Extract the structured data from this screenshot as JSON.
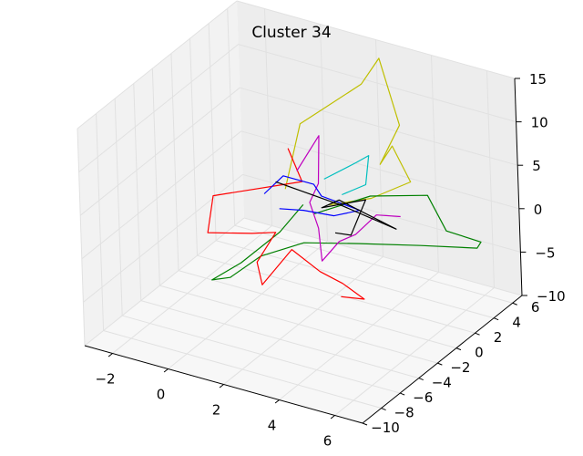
{
  "chart_data": {
    "type": "line",
    "projection": "3d",
    "title": "Cluster 34",
    "xlabel": "",
    "ylabel": "",
    "zlabel": "",
    "grid": true,
    "legend": "none",
    "xlim": [
      -3,
      7
    ],
    "ylim": [
      -10,
      7
    ],
    "zlim": [
      -10,
      15
    ],
    "x_ticks": [
      -2,
      0,
      2,
      4,
      6
    ],
    "x_tick_labels": [
      "−2",
      "0",
      "2",
      "4",
      "6"
    ],
    "y_ticks": [
      -10,
      -8,
      -6,
      -4,
      -2,
      0,
      2,
      4,
      6
    ],
    "y_tick_labels": [
      "−10",
      "−8",
      "−6",
      "−4",
      "−2",
      "0",
      "2",
      "4",
      "6"
    ],
    "z_ticks": [
      -10,
      -5,
      0,
      5,
      10,
      15
    ],
    "z_tick_labels": [
      "−10",
      "−5",
      "0",
      "5",
      "10",
      "15"
    ],
    "series": [
      {
        "color": "#bfbf00",
        "points": [
          [
            0.7,
            0.8,
            2
          ],
          [
            1.0,
            1.7,
            9
          ],
          [
            2.5,
            3.9,
            13
          ],
          [
            3.0,
            4.4,
            16
          ],
          [
            3.7,
            4.3,
            9
          ],
          [
            3.3,
            3.3,
            5
          ],
          [
            3.9,
            2.9,
            8
          ],
          [
            4.7,
            2.4,
            5
          ],
          [
            3.6,
            1.4,
            3
          ],
          [
            2.1,
            1.3,
            1
          ]
        ]
      },
      {
        "color": "#008000",
        "points": [
          [
            2.0,
            0.0,
            1
          ],
          [
            3.5,
            1.6,
            3
          ],
          [
            5.3,
            2.4,
            4
          ],
          [
            5.8,
            2.8,
            0
          ],
          [
            6.8,
            3.5,
            -1
          ],
          [
            6.9,
            2.8,
            -1
          ],
          [
            5.3,
            1.5,
            -1
          ],
          [
            3.6,
            0.0,
            -1
          ],
          [
            1.8,
            -0.6,
            -2
          ],
          [
            0.5,
            -1.4,
            -4
          ],
          [
            -0.5,
            -1.8,
            -7
          ],
          [
            -1.2,
            -1.7,
            -8
          ],
          [
            -0.4,
            -0.9,
            -6
          ],
          [
            0.8,
            -0.2,
            -2
          ],
          [
            1.4,
            0.6,
            1
          ]
        ]
      },
      {
        "color": "#ff0000",
        "points": [
          [
            0.6,
            1.5,
            6
          ],
          [
            0.9,
            2.0,
            2
          ],
          [
            -1.3,
            -1.0,
            1
          ],
          [
            -1.4,
            -1.4,
            -3
          ],
          [
            0.1,
            -1.1,
            -2
          ],
          [
            1.0,
            -1.2,
            -1
          ],
          [
            0.6,
            -2.1,
            -4
          ],
          [
            0.9,
            -2.5,
            -6
          ],
          [
            1.7,
            -1.6,
            -2
          ],
          [
            2.6,
            -1.3,
            -4
          ],
          [
            3.3,
            -1.0,
            -5
          ],
          [
            4.1,
            -1.1,
            -6
          ],
          [
            3.4,
            -1.5,
            -6
          ]
        ]
      },
      {
        "color": "#bf00bf",
        "points": [
          [
            1.0,
            1.2,
            4
          ],
          [
            1.6,
            1.9,
            8
          ],
          [
            1.7,
            1.4,
            3
          ],
          [
            1.5,
            1.0,
            1
          ],
          [
            2.0,
            0.4,
            -1
          ],
          [
            2.3,
            -0.2,
            -4
          ],
          [
            2.7,
            0.5,
            -2
          ],
          [
            3.2,
            0.8,
            -1
          ],
          [
            3.7,
            1.6,
            1
          ],
          [
            4.4,
            2.1,
            1
          ]
        ]
      },
      {
        "color": "#0000ff",
        "points": [
          [
            0.0,
            0.6,
            1
          ],
          [
            0.5,
            1.2,
            3
          ],
          [
            1.6,
            1.2,
            3
          ],
          [
            1.9,
            1.1,
            2
          ],
          [
            3.1,
            1.6,
            1
          ],
          [
            2.3,
            1.2,
            0
          ],
          [
            1.3,
            0.9,
            0
          ],
          [
            0.6,
            0.4,
            0
          ]
        ]
      },
      {
        "color": "#00bfbf",
        "points": [
          [
            1.7,
            2.0,
            3
          ],
          [
            2.6,
            2.8,
            5
          ],
          [
            3.0,
            3.0,
            6
          ],
          [
            3.0,
            2.6,
            3
          ],
          [
            2.4,
            1.8,
            2
          ]
        ]
      },
      {
        "color": "#000000",
        "points": [
          [
            0.5,
            0.4,
            3
          ],
          [
            2.4,
            1.6,
            1
          ],
          [
            4.4,
            1.6,
            0
          ],
          [
            2.5,
            1.2,
            2
          ],
          [
            2.0,
            0.8,
            1
          ],
          [
            3.5,
            1.1,
            3
          ],
          [
            3.1,
            0.6,
            -1
          ],
          [
            2.6,
            0.4,
            -1
          ]
        ]
      }
    ]
  }
}
